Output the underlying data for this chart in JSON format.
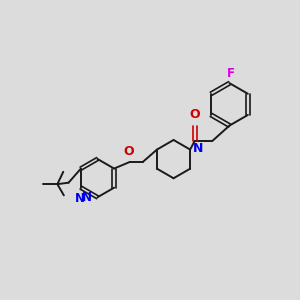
{
  "background_color": "#dcdcdc",
  "bond_color": "#1a1a1a",
  "N_color": "#0000ee",
  "O_color": "#cc0000",
  "F_color": "#dd00dd",
  "figsize": [
    3.0,
    3.0
  ],
  "dpi": 100,
  "xlim": [
    0,
    10
  ],
  "ylim": [
    0,
    10
  ]
}
